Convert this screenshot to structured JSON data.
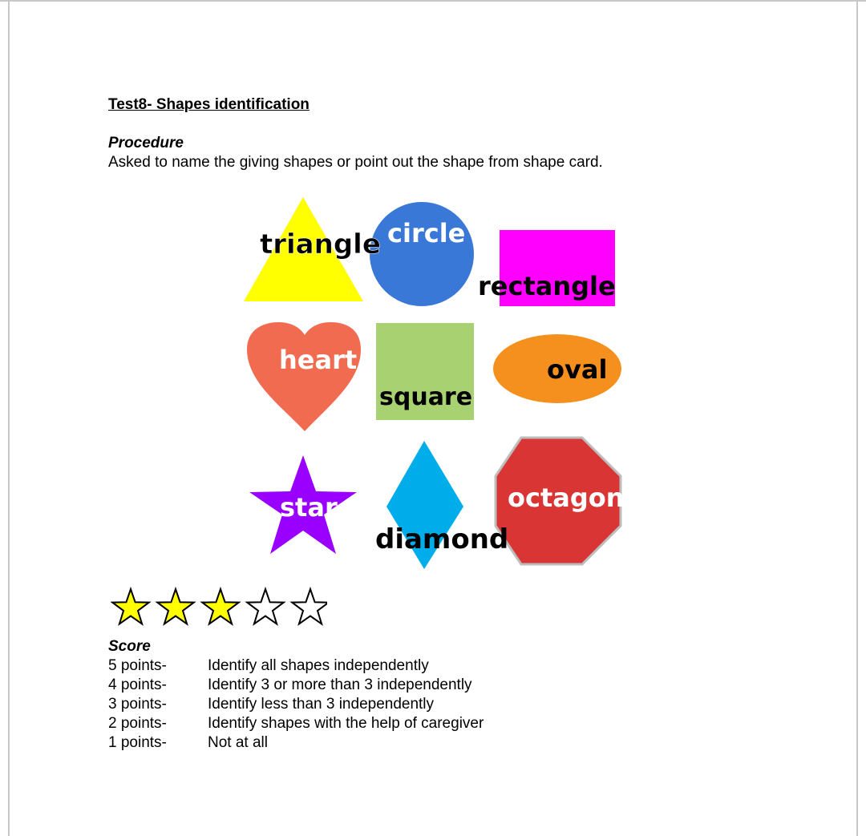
{
  "document": {
    "title": "Test8- Shapes identification",
    "procedure": {
      "heading": "Procedure",
      "text": "Asked to name the giving shapes or point out the shape from shape card."
    },
    "shapes": [
      {
        "label": "triangle",
        "color": "#ffff00"
      },
      {
        "label": "circle",
        "color": "#3a78d8"
      },
      {
        "label": "rectangle",
        "color": "#ff00ff"
      },
      {
        "label": "heart",
        "color": "#f06b50"
      },
      {
        "label": "square",
        "color": "#a8d172"
      },
      {
        "label": "oval",
        "color": "#f5901e"
      },
      {
        "label": "star",
        "color": "#9900ff"
      },
      {
        "label": "diamond",
        "color": "#00adeb"
      },
      {
        "label": "octagon",
        "color": "#d93535"
      }
    ],
    "rating": {
      "filled": 3,
      "total": 5,
      "fill_color": "#ffff00"
    },
    "score": {
      "heading": "Score",
      "rows": [
        {
          "points": "5 points-",
          "description": "Identify all shapes independently"
        },
        {
          "points": "4 points-",
          "description": "Identify 3 or more than 3 independently"
        },
        {
          "points": "3 points-",
          "description": "Identify less than 3 independently"
        },
        {
          "points": "2 points-",
          "description": "Identify shapes with the help of caregiver"
        },
        {
          "points": "1 points-",
          "description": "Not at all"
        }
      ]
    }
  }
}
